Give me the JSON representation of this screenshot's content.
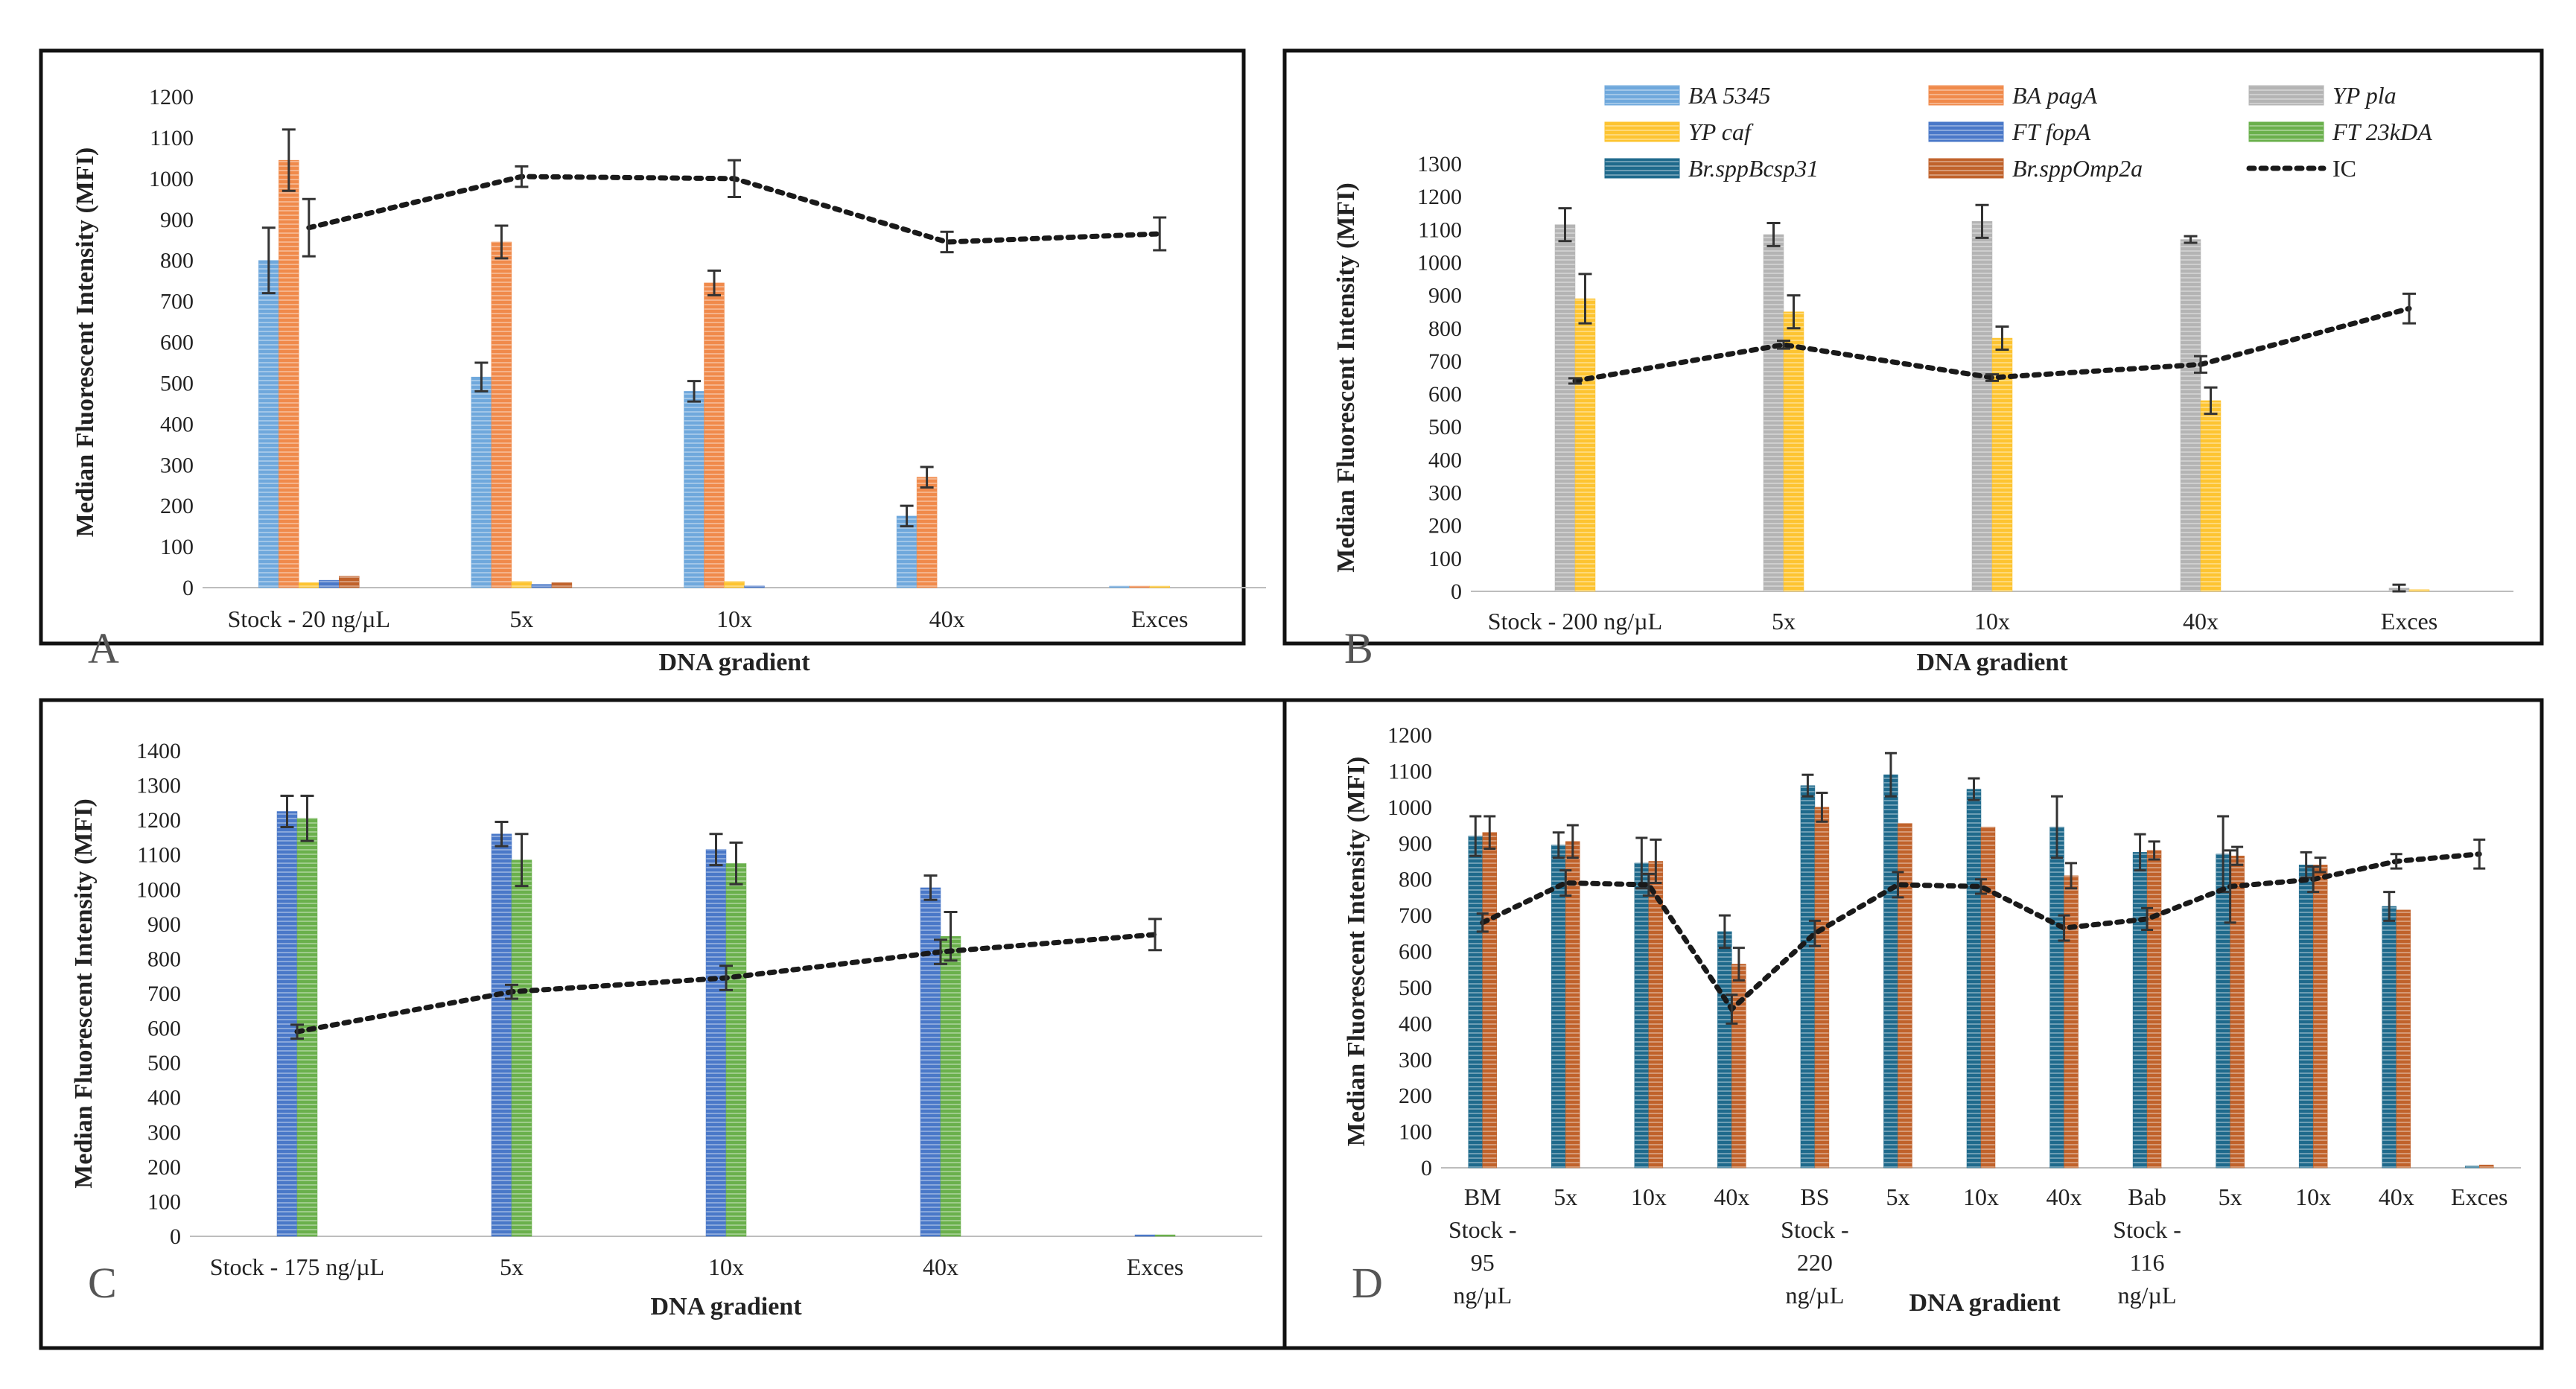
{
  "figure": {
    "panels": [
      "A",
      "B",
      "C",
      "D"
    ]
  },
  "legend": {
    "items": [
      {
        "key": "BA5345",
        "label": "BA 5345",
        "italic": true
      },
      {
        "key": "BApagA",
        "label": "BA pagA",
        "italic": true
      },
      {
        "key": "YPpla",
        "label": "YP pla",
        "italic": true
      },
      {
        "key": "YPcaf",
        "label": "YP caf",
        "italic": true
      },
      {
        "key": "FTfopA",
        "label": "FT fopA",
        "italic": true
      },
      {
        "key": "FT23kDA",
        "label": "FT 23kDA",
        "italic": true
      },
      {
        "key": "BrBcsp31",
        "label": "Br.sppBcsp31",
        "italic": true
      },
      {
        "key": "BrOmp2a",
        "label": "Br.sppOmp2a",
        "italic": true
      },
      {
        "key": "IC",
        "label": "IC",
        "italic": false
      }
    ]
  },
  "colors": {
    "BA5345": "#6fa8dc",
    "BApagA": "#f08a4b",
    "YPpla": "#b4b4b4",
    "YPcaf": "#fdc431",
    "FTfopA": "#4a78c8",
    "FT23kDA": "#6ab04c",
    "BrBcsp31": "#1f6a8c",
    "BrOmp2a": "#c0622b",
    "IC": "#1a1a1a"
  },
  "chart_data": [
    {
      "panel": "A",
      "type": "bar",
      "title": "",
      "xlabel": "DNA gradient",
      "ylabel": "Median Fluorescent Intensity (MFI)",
      "ylim": [
        0,
        1200
      ],
      "yticks": [
        0,
        100,
        200,
        300,
        400,
        500,
        600,
        700,
        800,
        900,
        1000,
        1100,
        1200
      ],
      "categories": [
        [
          "Stock - 20 ng/µL"
        ],
        [
          "5x"
        ],
        [
          "10x"
        ],
        [
          "40x"
        ],
        [
          "Exces"
        ]
      ],
      "series": [
        {
          "key": "BA5345",
          "values": [
            800,
            515,
            480,
            175,
            3
          ],
          "errors": [
            80,
            35,
            25,
            25,
            0
          ]
        },
        {
          "key": "BApagA",
          "values": [
            1045,
            845,
            745,
            270,
            3
          ],
          "errors": [
            75,
            40,
            30,
            25,
            0
          ]
        },
        {
          "key": "YPcaf",
          "values": [
            12,
            15,
            15,
            0,
            2
          ],
          "errors": [
            0,
            0,
            0,
            0,
            0
          ]
        },
        {
          "key": "FTfopA",
          "values": [
            18,
            8,
            4,
            0,
            0
          ],
          "errors": [
            0,
            0,
            0,
            0,
            0
          ]
        },
        {
          "key": "BrOmp2a",
          "values": [
            28,
            12,
            0,
            0,
            0
          ],
          "errors": [
            0,
            0,
            0,
            0,
            0
          ]
        }
      ],
      "ic": {
        "values": [
          880,
          1005,
          1000,
          845,
          865
        ],
        "errors": [
          70,
          25,
          45,
          25,
          40
        ]
      }
    },
    {
      "panel": "B",
      "type": "bar",
      "title": "",
      "xlabel": "DNA gradient",
      "ylabel": "Median Fluorescent Intensity (MFI)",
      "ylim": [
        0,
        1300
      ],
      "yticks": [
        0,
        100,
        200,
        300,
        400,
        500,
        600,
        700,
        800,
        900,
        1000,
        1100,
        1200,
        1300
      ],
      "categories": [
        [
          "Stock - 200 ng/µL"
        ],
        [
          "5x"
        ],
        [
          "10x"
        ],
        [
          "40x"
        ],
        [
          "Exces"
        ]
      ],
      "series": [
        {
          "key": "YPpla",
          "values": [
            1115,
            1085,
            1125,
            1070,
            10
          ],
          "errors": [
            50,
            35,
            50,
            10,
            10
          ]
        },
        {
          "key": "YPcaf",
          "values": [
            890,
            850,
            770,
            580,
            5
          ],
          "errors": [
            75,
            50,
            35,
            40,
            0
          ]
        }
      ],
      "ic": {
        "values": [
          640,
          750,
          650,
          690,
          860
        ],
        "errors": [
          8,
          12,
          10,
          25,
          45
        ]
      }
    },
    {
      "panel": "C",
      "type": "bar",
      "title": "",
      "xlabel": "DNA gradient",
      "ylabel": "Median Fluorescent Intensity (MFI)",
      "ylim": [
        0,
        1400
      ],
      "yticks": [
        0,
        100,
        200,
        300,
        400,
        500,
        600,
        700,
        800,
        900,
        1000,
        1100,
        1200,
        1300,
        1400
      ],
      "categories": [
        [
          "Stock - 175 ng/µL"
        ],
        [
          "5x"
        ],
        [
          "10x"
        ],
        [
          "40x"
        ],
        [
          "Exces"
        ]
      ],
      "series": [
        {
          "key": "FTfopA",
          "values": [
            1225,
            1160,
            1115,
            1005,
            3
          ],
          "errors": [
            45,
            35,
            45,
            35,
            0
          ]
        },
        {
          "key": "FT23kDA",
          "values": [
            1205,
            1085,
            1075,
            865,
            3
          ],
          "errors": [
            65,
            75,
            60,
            70,
            0
          ]
        }
      ],
      "ic": {
        "values": [
          590,
          705,
          745,
          820,
          870
        ],
        "errors": [
          20,
          20,
          35,
          35,
          45
        ]
      }
    },
    {
      "panel": "D",
      "type": "bar",
      "title": "",
      "xlabel": "DNA gradient",
      "ylabel": "Median Fluorescent Intensity (MFI)",
      "ylim": [
        0,
        1200
      ],
      "yticks": [
        0,
        100,
        200,
        300,
        400,
        500,
        600,
        700,
        800,
        900,
        1000,
        1100,
        1200
      ],
      "categories": [
        [
          "BM",
          "Stock -",
          "95",
          "ng/µL"
        ],
        [
          "5x"
        ],
        [
          "10x"
        ],
        [
          "40x"
        ],
        [
          "BS",
          "Stock -",
          "220",
          "ng/µL"
        ],
        [
          "5x"
        ],
        [
          "10x"
        ],
        [
          "40x"
        ],
        [
          "Bab",
          "Stock -",
          "116",
          "ng/µL"
        ],
        [
          "5x"
        ],
        [
          "10x"
        ],
        [
          "40x"
        ],
        [
          "Exces"
        ]
      ],
      "series": [
        {
          "key": "BrBcsp31",
          "values": [
            920,
            895,
            845,
            655,
            1060,
            1090,
            1050,
            945,
            875,
            870,
            840,
            725,
            5
          ],
          "errors": [
            55,
            35,
            70,
            45,
            30,
            60,
            30,
            85,
            50,
            105,
            35,
            40,
            0
          ]
        },
        {
          "key": "BrOmp2a",
          "values": [
            930,
            905,
            850,
            565,
            1000,
            955,
            945,
            810,
            880,
            865,
            840,
            715,
            8
          ],
          "errors": [
            45,
            45,
            60,
            45,
            40,
            0,
            0,
            35,
            25,
            25,
            20,
            0,
            0
          ]
        }
      ],
      "ic": {
        "values": [
          680,
          790,
          785,
          440,
          650,
          785,
          780,
          665,
          690,
          780,
          800,
          850,
          870
        ],
        "errors": [
          25,
          35,
          30,
          40,
          35,
          35,
          20,
          35,
          30,
          100,
          35,
          20,
          40
        ]
      }
    }
  ]
}
